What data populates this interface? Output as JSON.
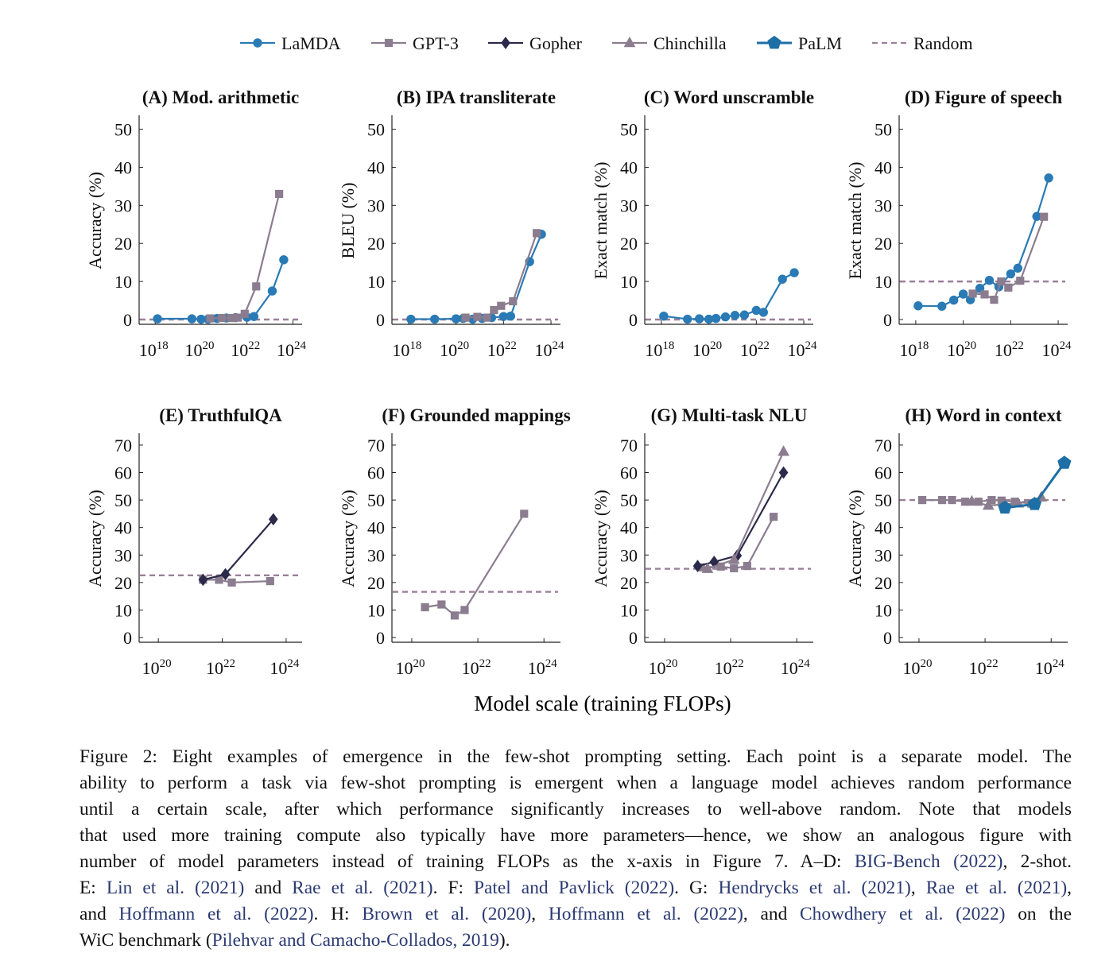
{
  "legend": [
    {
      "name": "LaMDA",
      "color": "#2a7ab5",
      "marker": "circle",
      "dash": false
    },
    {
      "name": "GPT-3",
      "color": "#8b7d8f",
      "marker": "square",
      "dash": false
    },
    {
      "name": "Gopher",
      "color": "#2c2a4a",
      "marker": "diamond",
      "dash": false
    },
    {
      "name": "Chinchilla",
      "color": "#8b7d8f",
      "marker": "triangle",
      "dash": false
    },
    {
      "name": "PaLM",
      "color": "#1d6fa6",
      "marker": "pentagon",
      "dash": false
    },
    {
      "name": "Random",
      "color": "#9a7f98",
      "marker": "none",
      "dash": true
    }
  ],
  "x_axis_label": "Model scale (training FLOPs)",
  "chart_data": [
    {
      "type": "line",
      "title": "(A) Mod. arithmetic",
      "ylabel": "Accuracy (%)",
      "xscale": "log",
      "xlim": [
        17.3,
        24.4
      ],
      "ylim": [
        0,
        52
      ],
      "xticks": [
        18,
        20,
        22,
        24
      ],
      "yticks": [
        0,
        10,
        20,
        30,
        40,
        50
      ],
      "random": 0,
      "series": [
        {
          "name": "LaMDA",
          "x": [
            18.1,
            19.6,
            20.0,
            20.3,
            20.7,
            21.1,
            21.5,
            22.0,
            22.3,
            23.1,
            23.6
          ],
          "y": [
            0.2,
            0.2,
            0.1,
            0.1,
            0.3,
            0.4,
            0.5,
            0.6,
            0.8,
            7.5,
            15.7
          ]
        },
        {
          "name": "GPT-3",
          "x": [
            20.4,
            20.9,
            21.3,
            21.6,
            21.9,
            22.4,
            23.4
          ],
          "y": [
            0.3,
            0.4,
            0.4,
            0.5,
            1.5,
            8.7,
            33.0
          ]
        }
      ]
    },
    {
      "type": "line",
      "title": "(B) IPA transliterate",
      "ylabel": "BLEU (%)",
      "xscale": "log",
      "xlim": [
        17.3,
        24.4
      ],
      "ylim": [
        0,
        52
      ],
      "xticks": [
        18,
        20,
        22,
        24
      ],
      "yticks": [
        0,
        10,
        20,
        30,
        40,
        50
      ],
      "random": 0,
      "series": [
        {
          "name": "LaMDA",
          "x": [
            18.1,
            19.1,
            20.0,
            20.3,
            20.7,
            21.1,
            21.5,
            22.0,
            22.3,
            23.1,
            23.6
          ],
          "y": [
            0.1,
            0.1,
            0.2,
            0.3,
            0.1,
            0.3,
            0.5,
            0.8,
            0.9,
            15.2,
            22.4
          ]
        },
        {
          "name": "GPT-3",
          "x": [
            20.4,
            20.9,
            21.3,
            21.6,
            21.9,
            22.4,
            23.4
          ],
          "y": [
            0.5,
            0.7,
            0.5,
            2.5,
            3.6,
            4.8,
            22.7
          ]
        }
      ]
    },
    {
      "type": "line",
      "title": "(C) Word unscramble",
      "ylabel": "Exact match (%)",
      "xscale": "log",
      "xlim": [
        17.3,
        24.4
      ],
      "ylim": [
        0,
        52
      ],
      "xticks": [
        18,
        20,
        22,
        24
      ],
      "yticks": [
        0,
        10,
        20,
        30,
        40,
        50
      ],
      "random": 0,
      "series": [
        {
          "name": "LaMDA",
          "x": [
            18.1,
            19.1,
            19.6,
            20.0,
            20.3,
            20.7,
            21.1,
            21.5,
            22.0,
            22.3,
            23.1,
            23.6
          ],
          "y": [
            0.9,
            0.1,
            0.2,
            0.1,
            0.3,
            0.7,
            1.1,
            1.2,
            2.4,
            1.9,
            10.6,
            12.3
          ]
        }
      ]
    },
    {
      "type": "line",
      "title": "(D) Figure of speech",
      "ylabel": "Exact match (%)",
      "xscale": "log",
      "xlim": [
        17.3,
        24.4
      ],
      "ylim": [
        0,
        52
      ],
      "xticks": [
        18,
        20,
        22,
        24
      ],
      "yticks": [
        0,
        10,
        20,
        30,
        40,
        50
      ],
      "random": 10,
      "series": [
        {
          "name": "LaMDA",
          "x": [
            18.1,
            19.1,
            19.6,
            20.0,
            20.3,
            20.7,
            21.1,
            21.5,
            22.0,
            22.3,
            23.1,
            23.6
          ],
          "y": [
            3.6,
            3.5,
            5.1,
            6.7,
            5.2,
            8.2,
            10.3,
            8.6,
            12.0,
            13.5,
            27.1,
            37.2
          ]
        },
        {
          "name": "GPT-3",
          "x": [
            20.4,
            20.9,
            21.3,
            21.6,
            21.9,
            22.4,
            23.4
          ],
          "y": [
            6.8,
            6.6,
            5.2,
            10.0,
            8.4,
            10.2,
            27.0
          ]
        }
      ]
    },
    {
      "type": "line",
      "title": "(E) TruthfulQA",
      "ylabel": "Accuracy (%)",
      "xscale": "log",
      "xlim": [
        19.4,
        24.5
      ],
      "ylim": [
        0,
        72
      ],
      "xticks": [
        20,
        22,
        24
      ],
      "yticks": [
        0,
        10,
        20,
        30,
        40,
        50,
        60,
        70
      ],
      "random": 22.6,
      "series": [
        {
          "name": "GPT-3",
          "x": [
            21.4,
            21.9,
            22.3,
            23.5
          ],
          "y": [
            21.0,
            21.0,
            20.0,
            20.5
          ]
        },
        {
          "name": "Gopher",
          "x": [
            21.4,
            22.1,
            23.6
          ],
          "y": [
            21.0,
            23.0,
            43.0
          ]
        }
      ]
    },
    {
      "type": "line",
      "title": "(F) Grounded mappings",
      "ylabel": "Accuracy (%)",
      "xscale": "log",
      "xlim": [
        19.4,
        24.5
      ],
      "ylim": [
        0,
        72
      ],
      "xticks": [
        20,
        22,
        24
      ],
      "yticks": [
        0,
        10,
        20,
        30,
        40,
        50,
        60,
        70
      ],
      "random": 16.6,
      "series": [
        {
          "name": "GPT-3",
          "x": [
            20.4,
            20.9,
            21.3,
            21.6,
            23.4
          ],
          "y": [
            11.0,
            12.0,
            8.0,
            10.0,
            45.0
          ]
        }
      ]
    },
    {
      "type": "line",
      "title": "(G) Multi-task NLU",
      "ylabel": "Accuracy (%)",
      "xscale": "log",
      "xlim": [
        19.4,
        24.5
      ],
      "ylim": [
        0,
        72
      ],
      "xticks": [
        20,
        22,
        24
      ],
      "yticks": [
        0,
        10,
        20,
        30,
        40,
        50,
        60,
        70
      ],
      "random": 25,
      "series": [
        {
          "name": "GPT-3",
          "x": [
            21.1,
            21.7,
            22.1,
            22.5,
            23.3
          ],
          "y": [
            25.5,
            25.8,
            25.2,
            26.0,
            43.9
          ]
        },
        {
          "name": "Gopher",
          "x": [
            21.0,
            21.5,
            22.2,
            23.6
          ],
          "y": [
            26.0,
            27.5,
            29.8,
            60.0
          ]
        },
        {
          "name": "Chinchilla",
          "x": [
            21.3,
            22.1,
            23.6
          ],
          "y": [
            25.0,
            28.3,
            67.6
          ]
        }
      ]
    },
    {
      "type": "line",
      "title": "(H) Word in context",
      "ylabel": "Accuracy (%)",
      "xscale": "log",
      "xlim": [
        19.4,
        24.5
      ],
      "ylim": [
        0,
        72
      ],
      "xticks": [
        20,
        22,
        24
      ],
      "yticks": [
        0,
        10,
        20,
        30,
        40,
        50,
        60,
        70
      ],
      "random": 50,
      "series": [
        {
          "name": "GPT-3",
          "x": [
            20.1,
            20.7,
            21.0,
            21.4,
            21.8,
            22.2,
            22.5,
            22.9,
            23.4
          ],
          "y": [
            50.0,
            50.0,
            50.0,
            49.4,
            49.4,
            50.0,
            49.8,
            49.4,
            48.7
          ]
        },
        {
          "name": "Chinchilla",
          "x": [
            21.6,
            22.1,
            23.0,
            23.7
          ],
          "y": [
            49.5,
            48.0,
            48.8,
            51.0
          ]
        },
        {
          "name": "PaLM",
          "x": [
            22.6,
            23.5,
            24.4
          ],
          "y": [
            47.2,
            48.5,
            63.5
          ]
        }
      ]
    }
  ],
  "caption": {
    "lines": [
      [
        {
          "t": "Figure 2: Eight examples of emergence in the few-shot prompting setting. Each point is a separate model. The"
        }
      ],
      [
        {
          "t": "ability to perform a task via few-shot prompting is emergent when a language model achieves random performance"
        }
      ],
      [
        {
          "t": "until a certain scale, after which performance significantly increases to well-above random. Note that models"
        }
      ],
      [
        {
          "t": "that used more training compute also typically have more parameters—hence, we show an analogous figure with"
        }
      ],
      [
        {
          "t": "number of model parameters instead of training FLOPs as the x-axis in Figure 7. A–D: "
        },
        {
          "t": "BIG-Bench (2022)",
          "c": 1
        },
        {
          "t": ", 2-shot."
        }
      ],
      [
        {
          "t": "E: "
        },
        {
          "t": "Lin et al. (2021)",
          "c": 1
        },
        {
          "t": " and "
        },
        {
          "t": "Rae et al. (2021)",
          "c": 1
        },
        {
          "t": ". F: "
        },
        {
          "t": "Patel and Pavlick (2022)",
          "c": 1
        },
        {
          "t": ". G: "
        },
        {
          "t": "Hendrycks et al. (2021)",
          "c": 1
        },
        {
          "t": ", "
        },
        {
          "t": "Rae et al. (2021)",
          "c": 1
        },
        {
          "t": ","
        }
      ],
      [
        {
          "t": "and "
        },
        {
          "t": "Hoffmann et al. (2022)",
          "c": 1
        },
        {
          "t": ". H: "
        },
        {
          "t": "Brown et al. (2020)",
          "c": 1
        },
        {
          "t": ", "
        },
        {
          "t": "Hoffmann et al. (2022)",
          "c": 1
        },
        {
          "t": ", and "
        },
        {
          "t": "Chowdhery et al. (2022)",
          "c": 1
        },
        {
          "t": " on the"
        }
      ],
      [
        {
          "t": "WiC benchmark ("
        },
        {
          "t": "Pilehvar and Camacho-Collados, 2019",
          "c": 1
        },
        {
          "t": ")."
        }
      ]
    ]
  }
}
